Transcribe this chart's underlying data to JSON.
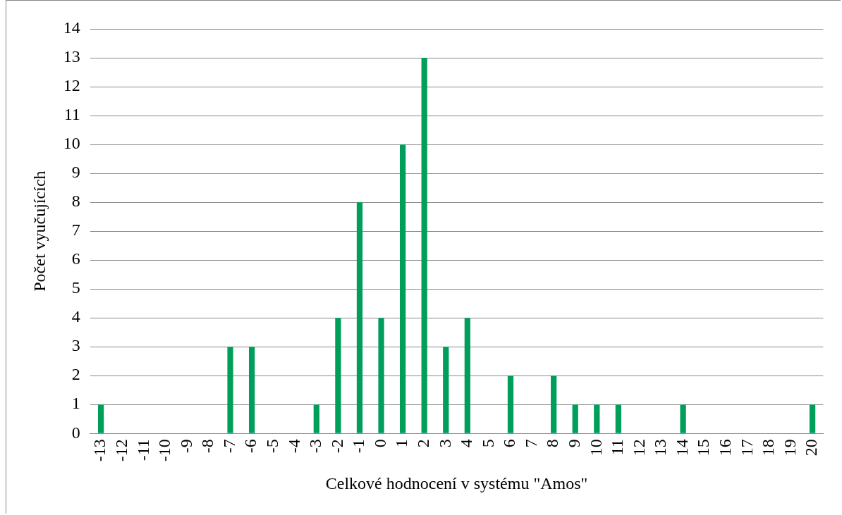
{
  "chart_data": {
    "type": "bar",
    "xlabel": "Celkové hodnocení v systému \"Amos\"",
    "ylabel": "Počet vyučujících",
    "categories": [
      "-13",
      "-12",
      "-11",
      "-10",
      "-9",
      "-8",
      "-7",
      "-6",
      "-5",
      "-4",
      "-3",
      "-2",
      "-1",
      "0",
      "1",
      "2",
      "3",
      "4",
      "5",
      "6",
      "7",
      "8",
      "9",
      "10",
      "11",
      "12",
      "13",
      "14",
      "15",
      "16",
      "17",
      "18",
      "19",
      "20"
    ],
    "series": [
      {
        "color": "#009e5b",
        "values": [
          1,
          0,
          0,
          0,
          0,
          0,
          3,
          3,
          0,
          0,
          1,
          4,
          8,
          4,
          10,
          13,
          3,
          4,
          0,
          2,
          0,
          2,
          1,
          1,
          1,
          0,
          0,
          1,
          0,
          0,
          0,
          0,
          0,
          1
        ]
      }
    ],
    "ylim": [
      0,
      14
    ],
    "yticks": [
      0,
      1,
      2,
      3,
      4,
      5,
      6,
      7,
      8,
      9,
      10,
      11,
      12,
      13,
      14
    ],
    "grid": "y",
    "legend": false
  }
}
